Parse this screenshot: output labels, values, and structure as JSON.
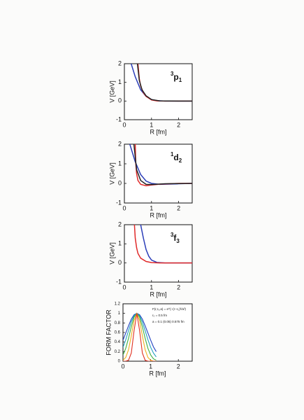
{
  "chart_data": [
    {
      "type": "line",
      "xlabel": "R [fm]",
      "ylabel": "V [GeV]",
      "annotation": {
        "sup": "3",
        "main": "p",
        "sub": "1"
      },
      "xlim": [
        0,
        2.5
      ],
      "xticks": [
        0,
        1,
        2
      ],
      "ylim": [
        -1,
        2
      ],
      "yticks": [
        -1,
        0,
        1,
        2
      ],
      "series": [
        {
          "color": "#2a3db8",
          "x": [
            0.25,
            0.4,
            0.6,
            0.8,
            1,
            1.2,
            1.5,
            2,
            2.5
          ],
          "values": [
            2,
            1.3,
            0.6,
            0.25,
            0.08,
            0.02,
            0,
            0,
            0
          ]
        },
        {
          "color": "#e02a2a",
          "x": [
            0.5,
            0.55,
            0.6,
            0.7,
            0.8,
            1,
            1.2,
            1.5,
            2,
            2.5
          ],
          "values": [
            2,
            1.2,
            0.8,
            0.45,
            0.25,
            0.06,
            0.01,
            0,
            0,
            0
          ]
        },
        {
          "color": "#222222",
          "x": [
            0.48,
            0.55,
            0.65,
            0.8,
            1,
            1.3,
            2,
            2.5
          ],
          "values": [
            2,
            1.1,
            0.6,
            0.28,
            0.08,
            0.01,
            0,
            0
          ]
        }
      ]
    },
    {
      "type": "line",
      "xlabel": "R [fm]",
      "ylabel": "V [GeV]",
      "annotation": {
        "sup": "1",
        "main": "d",
        "sub": "2"
      },
      "xlim": [
        0,
        2.5
      ],
      "xticks": [
        0,
        1,
        2
      ],
      "ylim": [
        -1,
        2
      ],
      "yticks": [
        -1,
        0,
        1,
        2
      ],
      "series": [
        {
          "color": "#2a3db8",
          "x": [
            0.2,
            0.4,
            0.6,
            0.8,
            1,
            1.3,
            2,
            2.5
          ],
          "values": [
            2,
            1.1,
            0.45,
            0.12,
            0,
            -0.05,
            -0.02,
            0
          ]
        },
        {
          "color": "#e02a2a",
          "x": [
            0.4,
            0.42,
            0.45,
            0.5,
            0.6,
            0.8,
            1,
            1.3,
            2,
            2.5
          ],
          "values": [
            2,
            1,
            0.5,
            0.15,
            -0.05,
            -0.12,
            -0.08,
            -0.04,
            0,
            0
          ]
        },
        {
          "color": "#222222",
          "x": [
            0.35,
            0.45,
            0.6,
            0.8,
            1,
            1.5,
            2.5
          ],
          "values": [
            2,
            0.7,
            0.15,
            -0.05,
            -0.06,
            -0.02,
            0
          ]
        }
      ]
    },
    {
      "type": "line",
      "xlabel": "R [fm]",
      "ylabel": "V [GeV]",
      "annotation": {
        "sup": "3",
        "main": "f",
        "sub": "3"
      },
      "xlim": [
        0,
        2.5
      ],
      "xticks": [
        0,
        1,
        2
      ],
      "ylim": [
        -1,
        2
      ],
      "yticks": [
        -1,
        0,
        1,
        2
      ],
      "series": [
        {
          "color": "#2a3db8",
          "x": [
            0.6,
            0.7,
            0.8,
            0.9,
            1,
            1.2,
            1.5,
            2,
            2.5
          ],
          "values": [
            2,
            1.3,
            0.7,
            0.35,
            0.15,
            0.03,
            0,
            0,
            0
          ]
        },
        {
          "color": "#e02a2a",
          "x": [
            0.37,
            0.4,
            0.45,
            0.5,
            0.6,
            0.8,
            1,
            1.3,
            2,
            2.5
          ],
          "values": [
            2,
            1.3,
            0.8,
            0.5,
            0.25,
            0.08,
            0.02,
            0,
            0,
            0
          ]
        }
      ]
    },
    {
      "type": "line",
      "xlabel": "R [fm]",
      "ylabel": "FORM FACTOR",
      "notes": [
        "F(r,r₀,a) = e^(−(r−r₀)²/a²)",
        "r₀ = 0.5 fm",
        "a = 0.1 (0.05) 0.575 fm"
      ],
      "xlim": [
        0,
        2.5
      ],
      "xticks": [
        0,
        1,
        2
      ],
      "ylim": [
        0,
        1.2
      ],
      "yticks": [
        0,
        0.2,
        0.4,
        0.6,
        0.8,
        1,
        1.2
      ],
      "x": [
        0,
        0.1,
        0.2,
        0.3,
        0.4,
        0.5,
        0.6,
        0.7,
        0.8,
        0.9,
        1,
        1.1,
        1.2
      ],
      "series": [
        {
          "color": "#2040c0",
          "values": [
            0.44,
            0.59,
            0.74,
            0.88,
            0.97,
            1,
            0.97,
            0.88,
            0.74,
            0.59,
            0.44,
            0.3,
            0.2
          ]
        },
        {
          "color": "#20a0c0",
          "values": [
            0.29,
            0.45,
            0.64,
            0.82,
            0.95,
            1,
            0.95,
            0.82,
            0.64,
            0.45,
            0.29,
            0.17,
            0.09
          ]
        },
        {
          "color": "#40b040",
          "values": [
            0.13,
            0.27,
            0.48,
            0.72,
            0.92,
            1,
            0.92,
            0.72,
            0.48,
            0.27,
            0.13,
            0.05,
            0.02
          ]
        },
        {
          "color": "#f0b020",
          "values": [
            0.02,
            0.08,
            0.24,
            0.53,
            0.85,
            1,
            0.85,
            0.53,
            0.24,
            0.08,
            0.02,
            0,
            0
          ]
        },
        {
          "color": "#e03020",
          "values": [
            0,
            0.001,
            0.02,
            0.17,
            0.64,
            1,
            0.64,
            0.17,
            0.02,
            0.001,
            0,
            0,
            0
          ]
        }
      ]
    }
  ]
}
